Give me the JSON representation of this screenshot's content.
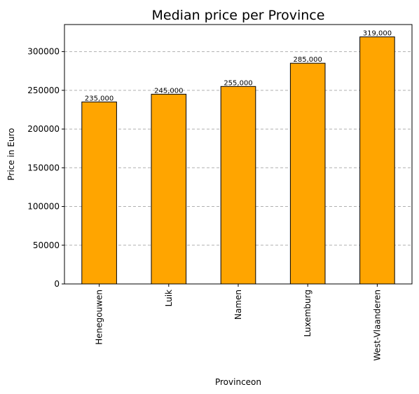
{
  "chart_data": {
    "type": "bar",
    "title": "Median price per Province",
    "xlabel": "Provinceon",
    "ylabel": "Price in Euro",
    "categories": [
      "Henegouwen",
      "Luik",
      "Namen",
      "Luxemburg",
      "West-Vlaanderen"
    ],
    "values": [
      235000,
      245000,
      255000,
      285000,
      319000
    ],
    "data_labels": [
      "235,000",
      "245,000",
      "255,000",
      "285,000",
      "319,000"
    ],
    "ylim": [
      0,
      334950
    ],
    "yticks": [
      0,
      50000,
      100000,
      150000,
      200000,
      250000,
      300000
    ],
    "ytick_labels": [
      "0",
      "50000",
      "100000",
      "150000",
      "200000",
      "250000",
      "300000"
    ],
    "grid": "y-dashed",
    "legend": "none",
    "colors": {
      "bar_fill": "#FFA500",
      "bar_edge": "#000000",
      "grid": "#b0b0b0"
    }
  }
}
